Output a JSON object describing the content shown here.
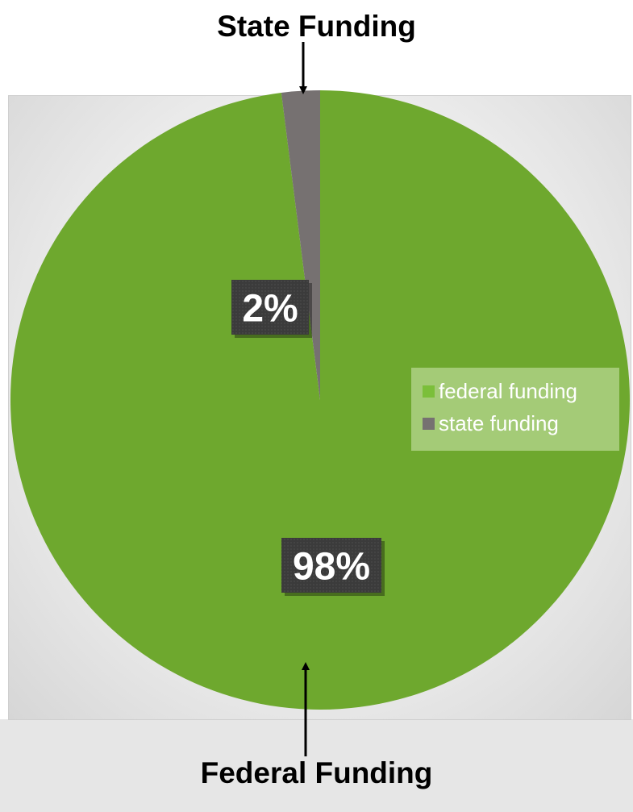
{
  "annotations": {
    "top": "State Funding",
    "bottom": "Federal Funding"
  },
  "chart_data": {
    "type": "pie",
    "title": "",
    "categories": [
      "federal funding",
      "state funding"
    ],
    "values": [
      98,
      2
    ],
    "data_labels": [
      "98%",
      "2%"
    ],
    "colors": [
      "#6ea82e",
      "#767171"
    ],
    "start_angle": "12 o'clock, clockwise",
    "legend": {
      "placement": "right",
      "entries": [
        "federal funding",
        "state funding"
      ]
    }
  }
}
